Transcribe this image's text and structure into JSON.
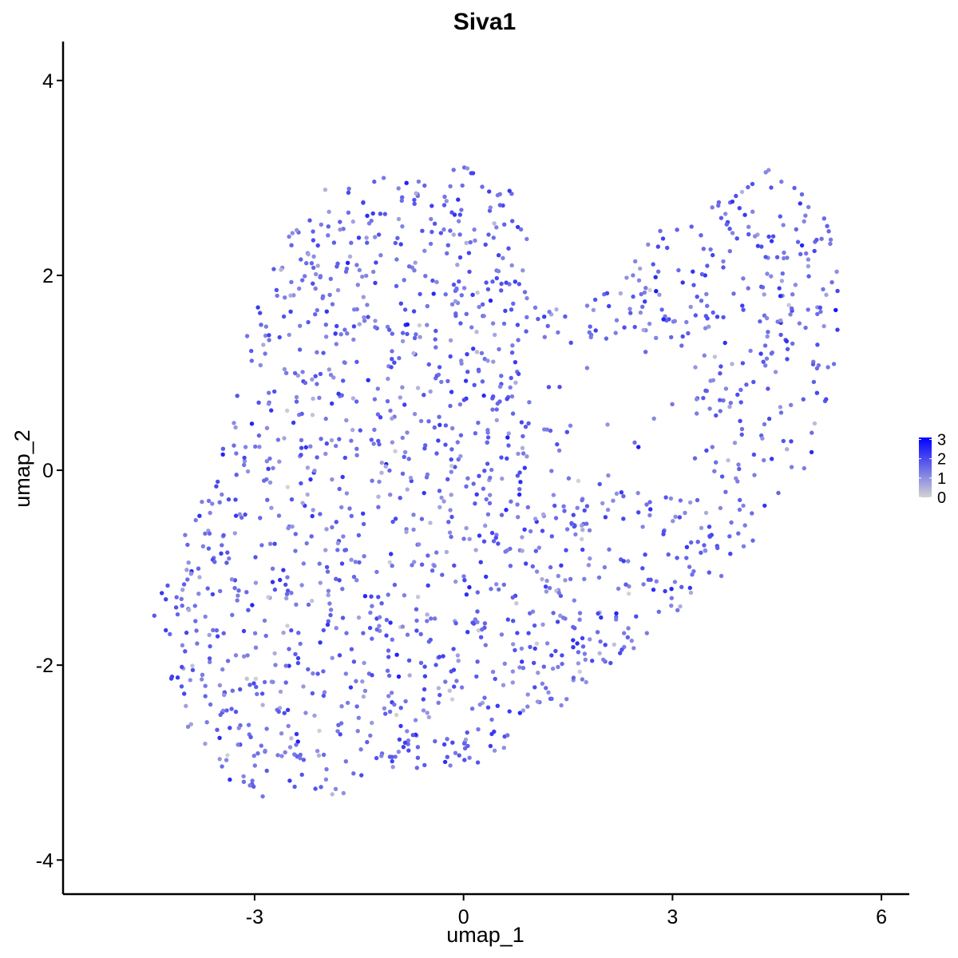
{
  "chart_data": {
    "type": "scatter",
    "title": "Siva1",
    "xlabel": "umap_1",
    "ylabel": "umap_2",
    "xlim": [
      -5.75,
      6.4
    ],
    "ylim": [
      -4.35,
      4.4
    ],
    "x_ticks": [
      -3,
      0,
      3,
      6
    ],
    "y_ticks": [
      -4,
      -2,
      0,
      2,
      4
    ],
    "x_tick_labels": [
      "-3",
      "0",
      "3",
      "6"
    ],
    "y_tick_labels": [
      "-4",
      "-2",
      "0",
      "2",
      "4"
    ],
    "grid": false,
    "legend": {
      "placement": "right",
      "type": "colorbar",
      "min": 0,
      "max": 3.1,
      "ticks": [
        0,
        1,
        2,
        3
      ],
      "tick_labels": [
        "0",
        "1",
        "2",
        "3"
      ],
      "low_color": "#d3d3d3",
      "high_color": "#0000ff"
    },
    "point_count_estimate": 1700,
    "point_color_range": [
      "#d3d3d3",
      "#0000ff"
    ]
  }
}
